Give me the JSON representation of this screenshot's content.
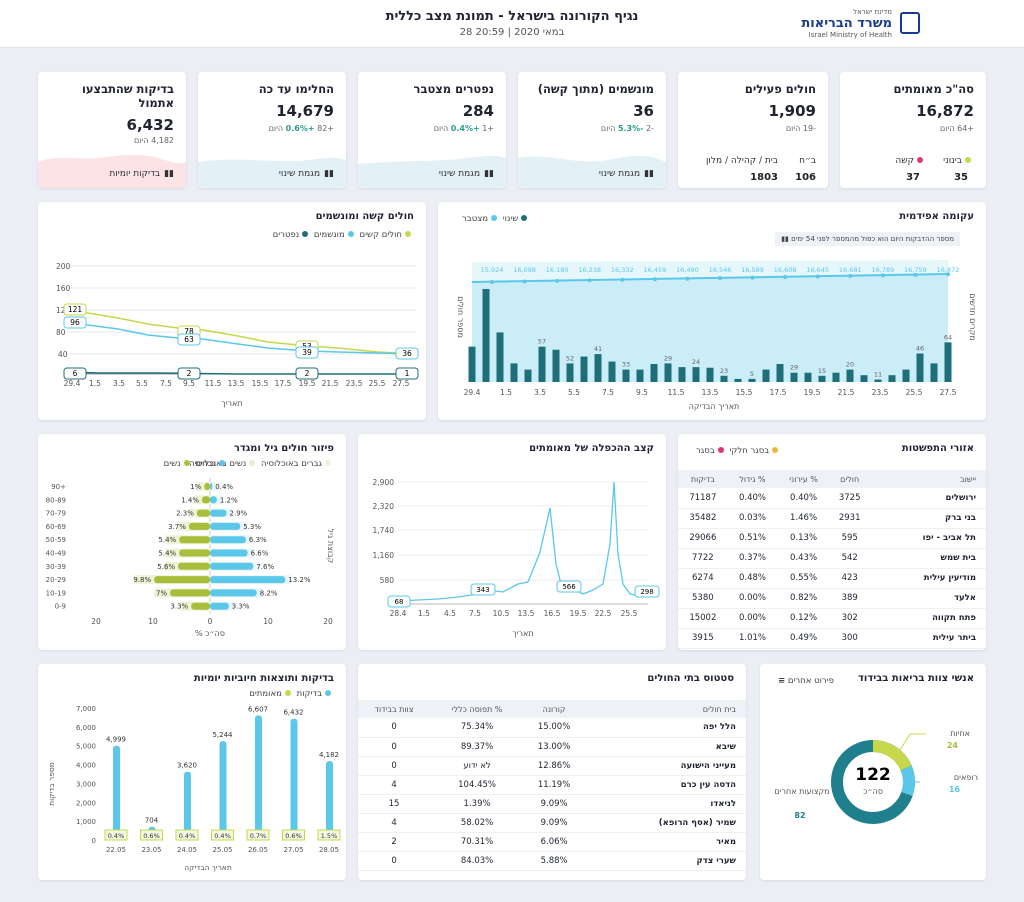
{
  "header": {
    "title": "נגיף הקורונה בישראל - תמונת מצב כללית",
    "date": "28 במאי 2020 | 20:59",
    "logo_top": "מדינת ישראל",
    "logo_main": "משרד הבריאות",
    "logo_en": "Israel Ministry of Health"
  },
  "kpis": [
    {
      "title": "סה\"כ מאומתים",
      "value": "16,872",
      "sub_num": "+64",
      "sub_txt": "היום",
      "b1_label": "קשה",
      "b1_val": "37",
      "b2_label": "בינוני",
      "b2_val": "35"
    },
    {
      "title": "חולים פעילים",
      "value": "1,909",
      "sub_num": "-19",
      "sub_txt": "היום",
      "b1_label": "בית / קהילה / מלון",
      "b1_val": "1803",
      "b2_label": "ב״ח",
      "b2_val": "106"
    },
    {
      "title": "מונשמים (מתוך קשה)",
      "value": "36",
      "sub_num": "-2",
      "sub_pct": "-5.3%",
      "sub_txt": "היום",
      "link": "מגמת שינוי"
    },
    {
      "title": "נפטרים מצטבר",
      "value": "284",
      "sub_num": "+1",
      "sub_pct": "+0.4%",
      "sub_txt": "היום",
      "link": "מגמת שינוי"
    },
    {
      "title": "החלימו עד כה",
      "value": "14,679",
      "sub_num": "+82",
      "sub_pct": "+0.6%",
      "sub_txt": "היום",
      "link": "מגמת שינוי"
    },
    {
      "title": "בדיקות שהתבצעו אתמול",
      "value": "6,432",
      "sub_num": "4,182",
      "sub_txt": "היום",
      "link": "בדיקות יומיות"
    }
  ],
  "severe": {
    "title": "חולים קשה ומונשמים",
    "legend": [
      "חולים קשים",
      "מונשמים",
      "נפטרים"
    ],
    "xlabel": "תאריך",
    "yticks": [
      "200",
      "160",
      "120",
      "80",
      "40"
    ],
    "xticks": [
      "29.4",
      "1.5",
      "3.5",
      "5.5",
      "7.5",
      "9.5",
      "11.5",
      "13.5",
      "15.5",
      "17.5",
      "19.5",
      "21.5",
      "23.5",
      "25.5",
      "27.5"
    ],
    "labels": {
      "s_start": "121",
      "v_start": "96",
      "d_start": "6",
      "s_mid": "78",
      "v_mid": "63",
      "d_mid": "2",
      "s_late": "53",
      "v_late": "39",
      "d_late": "2",
      "v_end": "36",
      "d_end": "1"
    }
  },
  "epi": {
    "title": "עקומה אפידמית",
    "legend": [
      "שינוי",
      "מצטבר"
    ],
    "note": "מספר ההדבקות היום הוא כפול מהמספר לפני 54 ימים",
    "ylabel_left": "מספר חולים",
    "ylabel_right": "מקרים חדשים",
    "xlabel": "תאריך הבדיקה",
    "cum_labels": [
      "15,924",
      "16,098",
      "16,180",
      "16,238",
      "16,332",
      "16,459",
      "16,490",
      "16,546",
      "16,589",
      "16,608",
      "16,645",
      "16,681",
      "16,789",
      "16,759",
      "16,872"
    ],
    "xticks": [
      "29.4",
      "1.5",
      "3.5",
      "5.5",
      "7.5",
      "9.5",
      "11.5",
      "13.5",
      "15.5",
      "17.5",
      "19.5",
      "21.5",
      "23.5",
      "25.5",
      "27.5"
    ],
    "bar_labels": [
      "57",
      "52",
      "41",
      "33",
      "29",
      "24",
      "23",
      "5",
      "29",
      "15",
      "20",
      "11",
      "46",
      "64"
    ]
  },
  "doubling": {
    "title": "קצב ההכפלה של מאומתים",
    "yticks": [
      "2,900",
      "2,320",
      "1,740",
      "1,160",
      "580"
    ],
    "xticks": [
      "28.4",
      "1.5",
      "4.5",
      "7.5",
      "10.5",
      "13.5",
      "16.5",
      "19.5",
      "22.5",
      "25.5"
    ],
    "xlabel": "תאריך",
    "labels": [
      "68",
      "343",
      "566",
      "298"
    ]
  },
  "age": {
    "title": "פיזור חולים גיל ומגדר",
    "legend": [
      "גברים באוכלוסיה",
      "נשים באוכלוסיה",
      "גברים",
      "נשים"
    ],
    "ylabel": "קבוצת גיל",
    "xlabel": "% סה״כ",
    "groups": [
      "90+",
      "80-89",
      "70-79",
      "60-69",
      "50-59",
      "40-49",
      "30-39",
      "20-29",
      "10-19",
      "0-9"
    ],
    "women": [
      "1%",
      "1.4%",
      "2.3%",
      "3.7%",
      "5.4%",
      "5.4%",
      "5.6%",
      "9.8%",
      "7%",
      "3.3%"
    ],
    "men": [
      "0.4%",
      "1.2%",
      "2.9%",
      "5.3%",
      "6.3%",
      "6.6%",
      "7.6%",
      "13.2%",
      "8.2%",
      "3.3%"
    ],
    "xticks": [
      "20",
      "10",
      "0",
      "10",
      "20"
    ]
  },
  "regions": {
    "title": "אזורי התפשטות",
    "legend": [
      "בסגר חלקי",
      "בסגר"
    ],
    "cols": [
      "יישוב",
      "חולים",
      "% עירוני",
      "% גידול",
      "בדיקות"
    ],
    "rows": [
      [
        "ירושלים",
        "3725",
        "0.40%",
        "0.40%",
        "71187"
      ],
      [
        "בני ברק",
        "2931",
        "1.46%",
        "0.03%",
        "35482"
      ],
      [
        "תל אביב - יפו",
        "595",
        "0.13%",
        "0.51%",
        "29066"
      ],
      [
        "בית שמש",
        "542",
        "0.43%",
        "0.37%",
        "7722"
      ],
      [
        "מודיעין עילית",
        "423",
        "0.55%",
        "0.48%",
        "6274"
      ],
      [
        "אלעד",
        "389",
        "0.82%",
        "0.00%",
        "5380"
      ],
      [
        "פתח תקווה",
        "302",
        "0.12%",
        "0.00%",
        "15002"
      ],
      [
        "ביתר עילית",
        "300",
        "0.49%",
        "1.01%",
        "3915"
      ]
    ]
  },
  "tests": {
    "title": "בדיקות ותוצאות חיוביות יומיות",
    "legend": [
      "בדיקות",
      "מאומתים"
    ],
    "yticks": [
      "7,000",
      "6,000",
      "5,000",
      "4,000",
      "3,000",
      "2,000",
      "1,000",
      "0"
    ],
    "ylabel": "מספר בדיקות",
    "xlabel": "תאריך הבדיקה",
    "dates": [
      "22.05",
      "23.05",
      "24.05",
      "25.05",
      "26.05",
      "27.05",
      "28.05"
    ],
    "vals": [
      "4,999",
      "704",
      "3,620",
      "5,244",
      "6,607",
      "6,432",
      "4,182"
    ],
    "pcts": [
      "0.4%",
      "0.6%",
      "0.4%",
      "0.4%",
      "0.7%",
      "0.6%",
      "1.5%"
    ]
  },
  "hospitals": {
    "title": "סטטוס בתי החולים",
    "cols": [
      "בית חולים",
      "קורונה",
      "% תפוסה כללי",
      "צוות בבידוד"
    ],
    "rows": [
      [
        "הלל יפה",
        "15.00%",
        "75.34%",
        "0"
      ],
      [
        "שיבא",
        "13.00%",
        "89.37%",
        "0"
      ],
      [
        "מעייני הישועה",
        "12.86%",
        "לא ידוע",
        "0"
      ],
      [
        "הדסה עין כרם",
        "11.19%",
        "104.45%",
        "4"
      ],
      [
        "לניאדו",
        "9.09%",
        "1.39%",
        "15"
      ],
      [
        "שמיר (אסף הרופא)",
        "9.09%",
        "58.02%",
        "4"
      ],
      [
        "מאיר",
        "6.06%",
        "70.31%",
        "2"
      ],
      [
        "שערי צדק",
        "5.88%",
        "84.03%",
        "0"
      ]
    ]
  },
  "staff": {
    "title": "אנשי צוות בריאות בבידוד",
    "link": "פירוט אחרים",
    "total": "122",
    "total_label": "סה״כ",
    "seg": [
      {
        "name": "אחיות",
        "val": "24"
      },
      {
        "name": "רופאים",
        "val": "16"
      },
      {
        "name": "מקצועות אחרים",
        "val": "82"
      }
    ]
  }
}
